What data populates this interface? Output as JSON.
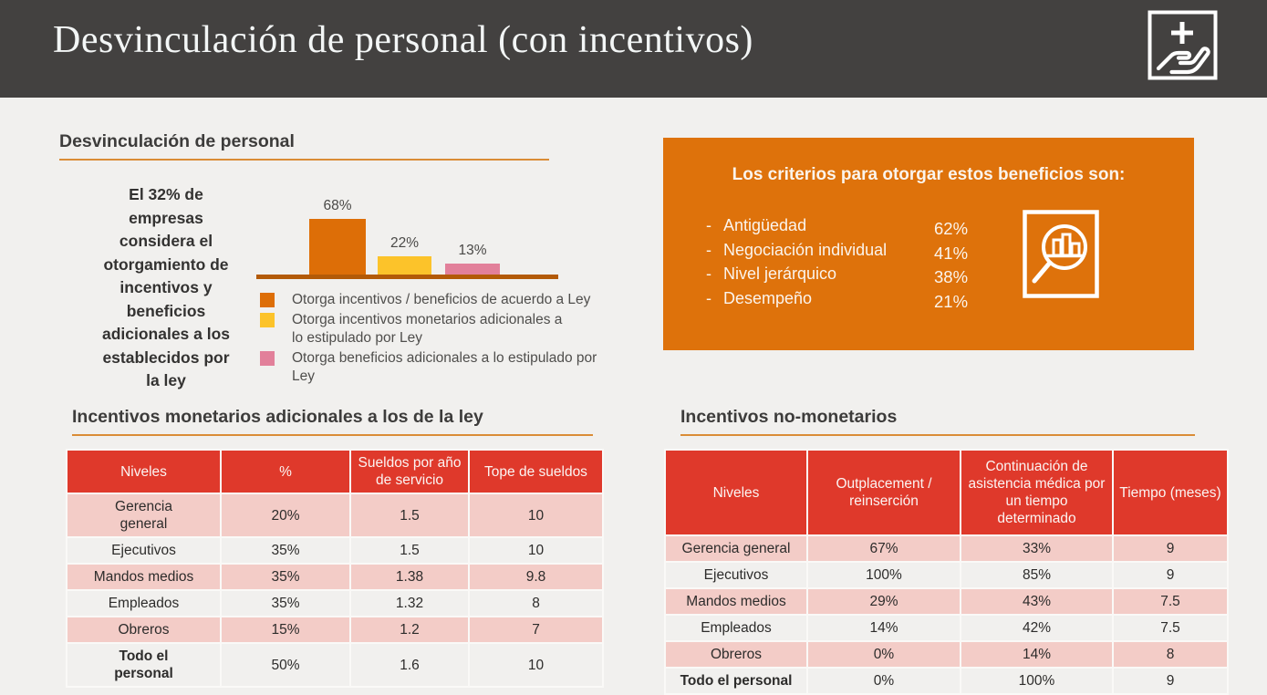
{
  "slide": {
    "title": "Desvinculación de personal (con incentivos)"
  },
  "overview": {
    "heading": "Desvinculación de personal",
    "statement": "El 32% de\nempresas\nconsidera el\notorgamiento de\nincentivos y\nbeneficios\nadicionales a los\nestablecidos por\nla ley"
  },
  "chart_data": {
    "type": "bar",
    "title": "",
    "categories": [
      "Otorga incentivos / beneficios de acuerdo a Ley",
      "Otorga incentivos monetarios adicionales a lo estipulado por Ley",
      "Otorga beneficios adicionales a lo estipulado por Ley"
    ],
    "values": [
      68,
      22,
      13
    ],
    "value_labels": [
      "68%",
      "22%",
      "13%"
    ],
    "colors": [
      "#dd6e07",
      "#fcc32a",
      "#e2809a"
    ],
    "legend_lines": [
      "Otorga incentivos / beneficios de acuerdo a Ley",
      "Otorga incentivos monetarios adicionales a\nlo estipulado por Ley",
      "Otorga beneficios adicionales a lo estipulado por\nLey"
    ],
    "ylim": [
      0,
      100
    ],
    "grid": false,
    "legend_position": "bottom"
  },
  "criteria_box": {
    "title": "Los criterios para otorgar estos beneficios son:",
    "items": [
      {
        "label": "Antigüedad",
        "value": "62%"
      },
      {
        "label": "Negociación individual",
        "value": "41%"
      },
      {
        "label": "Nivel jerárquico",
        "value": "38%"
      },
      {
        "label": "Desempeño",
        "value": "21%"
      }
    ],
    "icon": "magnifier-bar-chart-icon"
  },
  "monetary_table": {
    "heading": "Incentivos monetarios adicionales a los de la ley",
    "columns": [
      "Niveles",
      "%",
      "Sueldos por año de servicio",
      "Tope de sueldos"
    ],
    "rows": [
      [
        "Gerencia\ngeneral",
        "20%",
        "1.5",
        "10"
      ],
      [
        "Ejecutivos",
        "35%",
        "1.5",
        "10"
      ],
      [
        "Mandos medios",
        "35%",
        "1.38",
        "9.8"
      ],
      [
        "Empleados",
        "35%",
        "1.32",
        "8"
      ],
      [
        "Obreros",
        "15%",
        "1.2",
        "7"
      ],
      [
        "Todo el\npersonal",
        "50%",
        "1.6",
        "10"
      ]
    ]
  },
  "nonmonetary_table": {
    "heading": "Incentivos no-monetarios",
    "columns": [
      "Niveles",
      "Outplacement / reinserción",
      "Continuación de asistencia médica por un tiempo determinado",
      "Tiempo (meses)"
    ],
    "rows": [
      [
        "Gerencia general",
        "67%",
        "33%",
        "9"
      ],
      [
        "Ejecutivos",
        "100%",
        "85%",
        "9"
      ],
      [
        "Mandos medios",
        "29%",
        "43%",
        "7.5"
      ],
      [
        "Empleados",
        "14%",
        "42%",
        "7.5"
      ],
      [
        "Obreros",
        "0%",
        "14%",
        "8"
      ],
      [
        "Todo el personal",
        "0%",
        "100%",
        "9"
      ]
    ]
  },
  "colors": {
    "page_background": "#f1f0ee",
    "header_bar_gray": "#434140",
    "accent_orange_box": "#de720b",
    "underline_orange": "#da8c36",
    "bar_orange": "#dd6e07",
    "bar_yellow": "#fcc32a",
    "bar_pink": "#e2809a",
    "baseline_orange": "#b35a07",
    "table_header_red": "#df392b",
    "table_row_pink": "#f3ccc7"
  }
}
